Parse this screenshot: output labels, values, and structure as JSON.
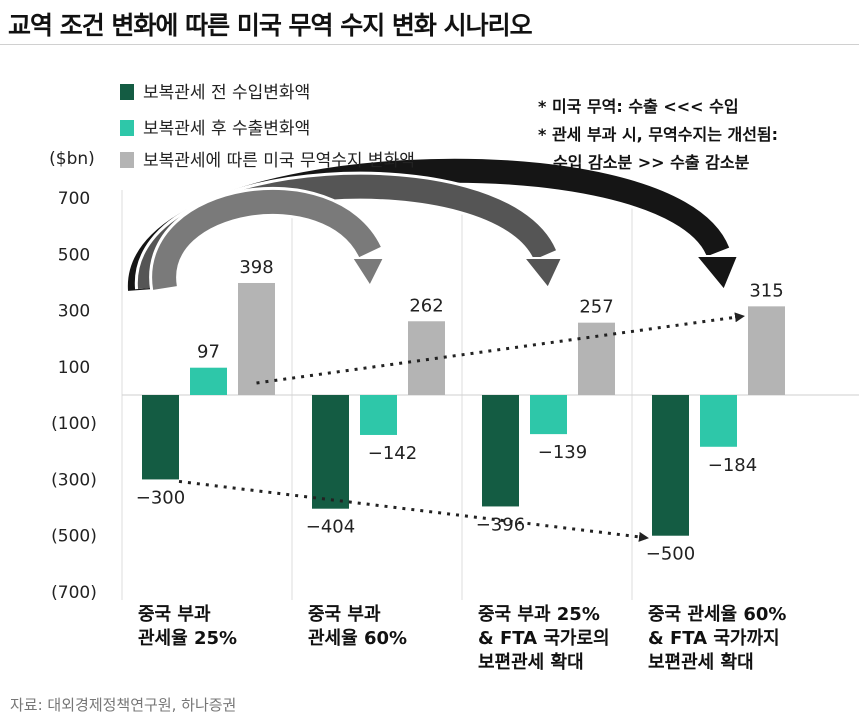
{
  "title": "교역 조건 변화에 따른 미국 무역 수지 변화 시나리오",
  "source": "자료: 대외경제정책연구원, 하나증권",
  "chart_data": {
    "type": "bar",
    "unit_label": "($bn)",
    "ylim": [
      -700,
      700
    ],
    "y_ticks": [
      700,
      500,
      300,
      100,
      -100,
      -300,
      -500,
      -700
    ],
    "y_tick_labels": [
      "700",
      "500",
      "300",
      "100",
      "(100)",
      "(300)",
      "(500)",
      "(700)"
    ],
    "grid": false,
    "legend_position": "top-left",
    "categories": [
      "중국 부과\n관세율 25%",
      "중국 부과\n관세율 60%",
      "중국 부과 25%\n& FTA 국가로의\n보편관세 확대",
      "중국 관세율 60%\n& FTA 국가까지\n보편관세 확대"
    ],
    "series": [
      {
        "name": "보복관세 전 수입변화액",
        "color": "#145c43",
        "values": [
          -300,
          -404,
          -396,
          -500
        ],
        "labels": [
          "−300",
          "−404",
          "−396",
          "−500"
        ]
      },
      {
        "name": "보복관세 후 수출변화액",
        "color": "#2ec7a9",
        "values": [
          97,
          -142,
          -139,
          -184
        ],
        "labels": [
          "97",
          "−142",
          "−139",
          "−184"
        ]
      },
      {
        "name": "보복관세에 따른 미국 무역수지 변화액",
        "color": "#b4b4b4",
        "values": [
          398,
          262,
          257,
          315
        ],
        "labels": [
          "398",
          "262",
          "257",
          "315"
        ]
      }
    ],
    "annotations": [
      "* 미국 무역: 수출  <<<  수입",
      "* 관세 부과 시, 무역수지는 개선됨:",
      "수입 감소분 >> 수출 감소분"
    ]
  }
}
